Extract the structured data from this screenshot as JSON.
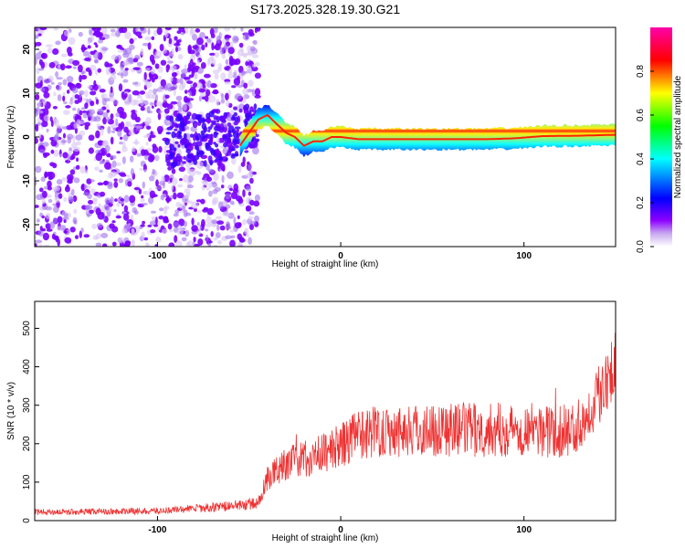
{
  "title": "S173.2025.328.19.30.G21",
  "chart_data": [
    {
      "type": "heatmap",
      "name": "spectrogram",
      "xlabel": "Height of straight line (km)",
      "ylabel": "Frequency (Hz)",
      "xlim": [
        -167,
        150
      ],
      "ylim": [
        -25,
        25
      ],
      "x_ticks": [
        -100,
        0,
        100
      ],
      "x_tick_labels": [
        "-100",
        "0",
        "100"
      ],
      "y_ticks": [
        20,
        10,
        0,
        -10,
        -20
      ],
      "y_tick_labels": [
        "20",
        "10",
        "0",
        "-10",
        "-20"
      ],
      "colorbar": {
        "label": "Normalized spectral amplitude",
        "range": [
          0,
          1
        ],
        "ticks": [
          0,
          0.2,
          0.4,
          0.6,
          0.8
        ],
        "tick_labels": [
          "0.0",
          "0.2",
          "0.4",
          "0.6",
          "0.8"
        ],
        "colormap": [
          "#ffffff",
          "#8c00ff",
          "#0000ff",
          "#00ffff",
          "#00ff00",
          "#ffff00",
          "#ff0000",
          "#ff00aa"
        ]
      },
      "ridge": {
        "description_values": "dominant frequency ridge (Hz) vs height (km)",
        "x": [
          -55,
          -50,
          -45,
          -40,
          -35,
          -30,
          -25,
          -20,
          -15,
          -10,
          -5,
          0,
          10,
          20,
          40,
          60,
          80,
          95,
          110,
          130,
          150
        ],
        "y": [
          -2,
          1,
          4,
          5,
          3,
          1,
          0,
          -2,
          -1,
          -1,
          0,
          0,
          -0.5,
          -0.5,
          -0.5,
          -0.5,
          -0.5,
          -0.3,
          0.2,
          0.3,
          0.5
        ]
      },
      "scatter_region": {
        "x_range": [
          -167,
          -45
        ],
        "y_range": [
          -25,
          25
        ]
      }
    },
    {
      "type": "line",
      "name": "snr",
      "xlabel": "Height of straight line (km)",
      "ylabel": "SNR (10 * v/v)",
      "xlim": [
        -167,
        150
      ],
      "ylim": [
        0,
        570
      ],
      "x_ticks": [
        -100,
        0,
        100
      ],
      "x_tick_labels": [
        "-100",
        "0",
        "100"
      ],
      "y_ticks": [
        0,
        100,
        200,
        300,
        400,
        500
      ],
      "y_tick_labels": [
        "0",
        "100",
        "200",
        "300",
        "400",
        "500"
      ],
      "line_color": "#ee3333",
      "trend": {
        "x": [
          -167,
          -100,
          -60,
          -45,
          -40,
          -30,
          -20,
          -10,
          0,
          10,
          20,
          40,
          60,
          80,
          100,
          120,
          130,
          140,
          145,
          150
        ],
        "y": [
          22,
          25,
          38,
          45,
          110,
          150,
          160,
          175,
          195,
          225,
          235,
          235,
          238,
          235,
          238,
          230,
          245,
          320,
          380,
          400
        ]
      }
    }
  ]
}
